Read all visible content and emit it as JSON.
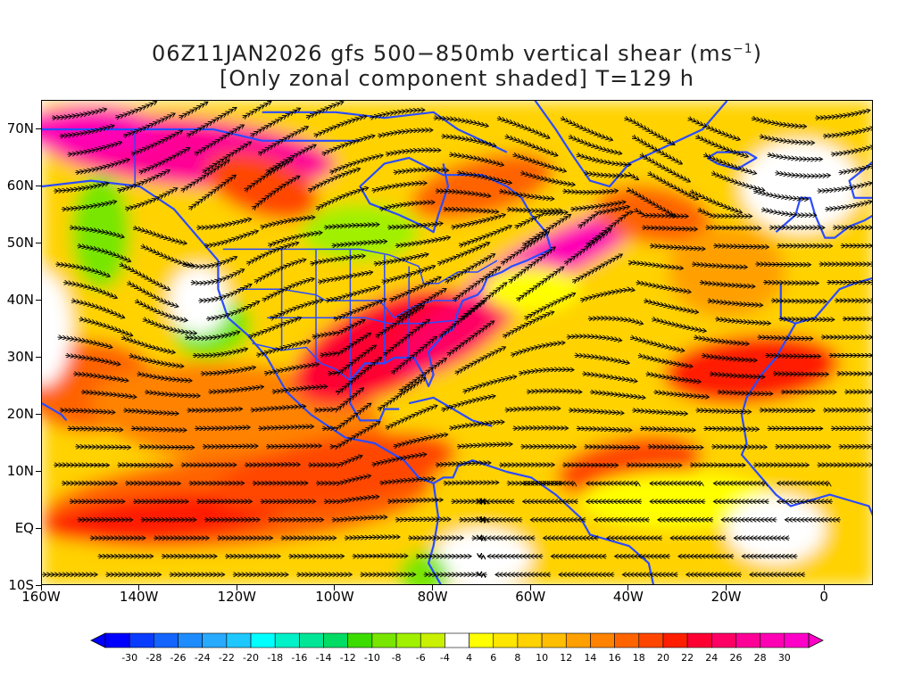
{
  "title": {
    "line1_prefix": "06Z11JAN2026 gfs 500−850mb vertical shear (ms",
    "line1_superscript": "−1",
    "line1_suffix": ")",
    "line2": "[Only zonal component shaded] T=129 h"
  },
  "axes": {
    "x_labels": [
      "160W",
      "140W",
      "120W",
      "100W",
      "80W",
      "60W",
      "40W",
      "20W",
      "0"
    ],
    "x_values": [
      -160,
      -140,
      -120,
      -100,
      -80,
      -60,
      -40,
      -20,
      0
    ],
    "y_labels": [
      "10S",
      "EQ",
      "10N",
      "20N",
      "30N",
      "40N",
      "50N",
      "60N",
      "70N"
    ],
    "y_values": [
      -10,
      0,
      10,
      20,
      30,
      40,
      50,
      60,
      70
    ],
    "lon_range": [
      -160,
      10
    ],
    "lat_range": [
      -10,
      75
    ]
  },
  "colorbar": {
    "labels": [
      "-30",
      "-28",
      "-26",
      "-24",
      "-22",
      "-20",
      "-18",
      "-16",
      "-14",
      "-12",
      "-10",
      "-8",
      "-6",
      "-4",
      "4",
      "6",
      "8",
      "10",
      "12",
      "14",
      "16",
      "18",
      "20",
      "22",
      "24",
      "26",
      "28",
      "30"
    ],
    "colors": [
      "#0000ff",
      "#0a3cff",
      "#1464ff",
      "#1e8cff",
      "#28aaff",
      "#1ec8ff",
      "#00ffff",
      "#00f0c8",
      "#00e696",
      "#00dc64",
      "#3cdc00",
      "#78e600",
      "#a0f000",
      "#c8f000",
      "#ffffff",
      "#ffff00",
      "#ffe600",
      "#ffd200",
      "#ffbe00",
      "#ffa000",
      "#ff8200",
      "#ff6400",
      "#ff4600",
      "#ff1e00",
      "#ff0032",
      "#ff0064",
      "#ff0096",
      "#ff00b4",
      "#ff00c8"
    ]
  },
  "colors": {
    "coastline": "#2b4bff",
    "streamline": "#000000"
  }
}
